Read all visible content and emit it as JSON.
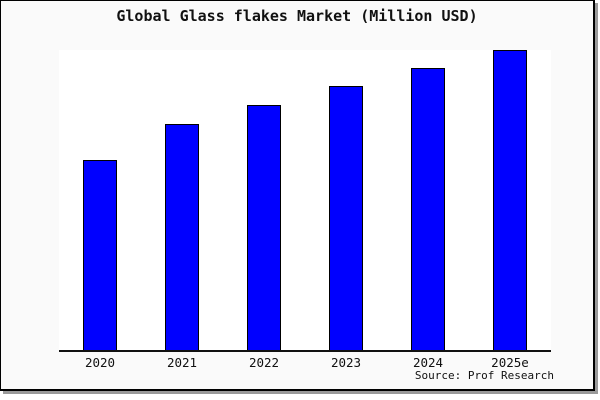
{
  "title": "Global Glass flakes Market (Million USD)",
  "source_credit": "Source: Prof Research",
  "colors": {
    "canvas_background": "#fafafa",
    "plot_background": "#ffffff",
    "bar_fill": "#0000ff",
    "bar_border": "#000000",
    "axis_line": "#111111",
    "text": "#111111",
    "frame_border": "#000000",
    "frame_shadow": "#9a9a9a"
  },
  "chart_data": {
    "type": "bar",
    "title": "Global Glass flakes Market (Million USD)",
    "categories": [
      "2020",
      "2021",
      "2022",
      "2023",
      "2024",
      "2025e"
    ],
    "values": [
      63.3,
      75.3,
      81.7,
      88.0,
      94.0,
      100.0
    ],
    "value_unit": "percent_of_tallest_bar (no y-axis scale shown in image)",
    "xlabel": "",
    "ylabel": "",
    "y_axis_visible": false,
    "grid": false,
    "legend": false,
    "bar_color": "#0000ff",
    "annotation": "Source: Prof Research"
  }
}
